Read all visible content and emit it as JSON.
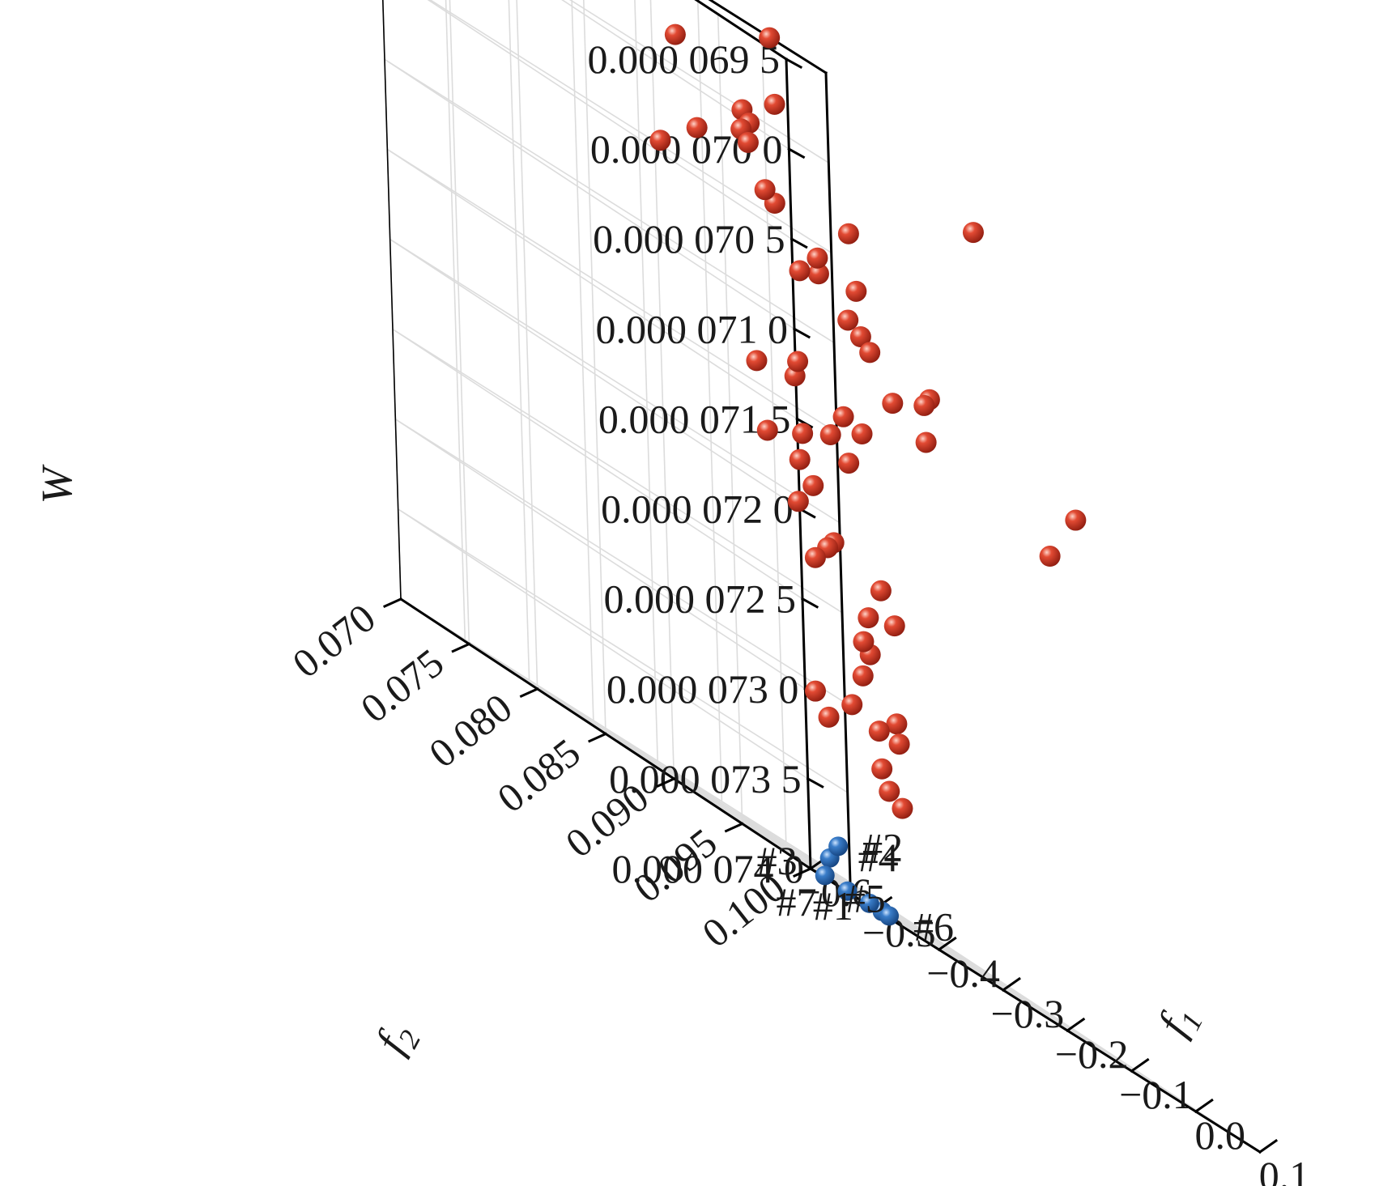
{
  "chart_data": {
    "type": "scatter",
    "projection": "3d",
    "grid": true,
    "axes": {
      "x": {
        "label": "f",
        "label_sub": "1",
        "range": [
          -0.6,
          0.1
        ],
        "ticks": [
          "−0.6",
          "−0.5",
          "−0.4",
          "−0.3",
          "−0.2",
          "−0.1",
          "0.0",
          "0.1"
        ]
      },
      "y": {
        "label": "f",
        "label_sub": "2",
        "range": [
          0.07,
          0.1
        ],
        "ticks": [
          "0.070",
          "0.075",
          "0.080",
          "0.085",
          "0.090",
          "0.095",
          "0.100"
        ]
      },
      "z": {
        "label": "W",
        "range": [
          6.95e-05,
          7.4e-05
        ],
        "reversed": true,
        "ticks": [
          "0.000 069 5",
          "0.000 070 0",
          "0.000 070 5",
          "0.000 071 0",
          "0.000 071 5",
          "0.000 072 0",
          "0.000 072 5",
          "0.000 073 0",
          "0.000 073 5",
          "0.000 074 0"
        ]
      }
    },
    "series": [
      {
        "color": "#d8321f",
        "points": [
          [
            -0.02,
            0.0715,
            6.95e-05
          ],
          [
            0.05,
            0.083,
            6.985e-05
          ],
          [
            -0.1,
            0.0755,
            6.985e-05
          ],
          [
            -0.12,
            0.074,
            7e-05
          ],
          [
            -0.12,
            0.0745,
            7.005e-05
          ],
          [
            -0.35,
            0.08,
            6.98e-05
          ],
          [
            -0.25,
            0.08,
            7.01e-05
          ],
          [
            -0.25,
            0.0805,
            7.015e-05
          ],
          [
            -0.32,
            0.08,
            7.025e-05
          ],
          [
            -0.18,
            0.0845,
            7.03e-05
          ],
          [
            -0.3,
            0.084,
            7.035e-05
          ],
          [
            -0.2,
            0.08,
            7.04e-05
          ],
          [
            -0.4,
            0.081,
            7.045e-05
          ],
          [
            -0.22,
            0.084,
            7.055e-05
          ],
          [
            -0.16,
            0.084,
            7.06e-05
          ],
          [
            -0.07,
            0.077,
            7.065e-05
          ],
          [
            -0.1,
            0.077,
            7.07e-05
          ],
          [
            -0.1,
            0.0805,
            7.08e-05
          ],
          [
            -0.07,
            0.08,
            7.085e-05
          ],
          [
            -0.12,
            0.083,
            7.09e-05
          ],
          [
            -0.07,
            0.085,
            7.095e-05
          ],
          [
            -0.1,
            0.086,
            7.1e-05
          ],
          [
            -0.15,
            0.086,
            7.11e-05
          ],
          [
            0.05,
            0.09,
            7.11e-05
          ],
          [
            -0.12,
            0.087,
            7.12e-05
          ],
          [
            0.05,
            0.088,
            7.14e-05
          ],
          [
            -0.32,
            0.087,
            7.12e-05
          ],
          [
            -0.25,
            0.087,
            7.135e-05
          ],
          [
            -0.24,
            0.083,
            7.13e-05
          ],
          [
            -0.3,
            0.083,
            7.135e-05
          ],
          [
            -0.03,
            0.078,
            7.14e-05
          ],
          [
            -0.25,
            0.086,
            7.15e-05
          ],
          [
            -0.18,
            0.084,
            7.16e-05
          ],
          [
            -0.22,
            0.0825,
            7.16e-05
          ],
          [
            -0.35,
            0.086,
            7.17e-05
          ],
          [
            -0.3,
            0.086,
            7.175e-05
          ],
          [
            -0.28,
            0.086,
            7.185e-05
          ],
          [
            -0.23,
            0.0825,
            7.2e-05
          ],
          [
            -0.25,
            0.086,
            7.21e-05
          ],
          [
            -0.26,
            0.086,
            7.215e-05
          ],
          [
            -0.28,
            0.086,
            7.225e-05
          ],
          [
            -0.22,
            0.088,
            7.22e-05
          ],
          [
            -0.2,
            0.088,
            7.235e-05
          ],
          [
            -0.22,
            0.087,
            7.24e-05
          ],
          [
            -0.25,
            0.088,
            7.255e-05
          ],
          [
            -0.24,
            0.088,
            7.26e-05
          ],
          [
            -0.21,
            0.086,
            7.275e-05
          ],
          [
            -0.18,
            0.087,
            7.29e-05
          ],
          [
            -0.25,
            0.087,
            7.295e-05
          ],
          [
            -0.24,
            0.0885,
            7.3e-05
          ],
          [
            -0.23,
            0.0895,
            7.3e-05
          ],
          [
            -0.35,
            0.089,
            7.3e-05
          ],
          [
            -0.33,
            0.089,
            7.31e-05
          ],
          [
            -0.28,
            0.0905,
            7.32e-05
          ],
          [
            -0.28,
            0.091,
            7.33e-05
          ],
          [
            -0.26,
            0.091,
            7.335e-05
          ]
        ]
      },
      {
        "color": "#2e6cb5",
        "points": [
          {
            "label": "#3",
            "x": -0.28,
            "y": 0.0864,
            "z": 7.39e-05
          },
          {
            "label": "#2",
            "x": -0.3,
            "y": 0.088,
            "z": 7.38e-05
          },
          {
            "label": "#4",
            "x": -0.35,
            "y": 0.0935,
            "z": 7.4e-05
          },
          {
            "label": "#1",
            "x": -0.37,
            "y": 0.0935,
            "z": 7.4e-05
          },
          {
            "label": "#6",
            "x": -0.35,
            "y": 0.094,
            "z": 7.4e-05
          },
          {
            "label": "#5",
            "x": -0.45,
            "y": 0.094,
            "z": 7.4e-05
          },
          {
            "label": "#7",
            "x": -0.5,
            "y": 0.098,
            "z": 7.4e-05
          }
        ]
      }
    ]
  }
}
